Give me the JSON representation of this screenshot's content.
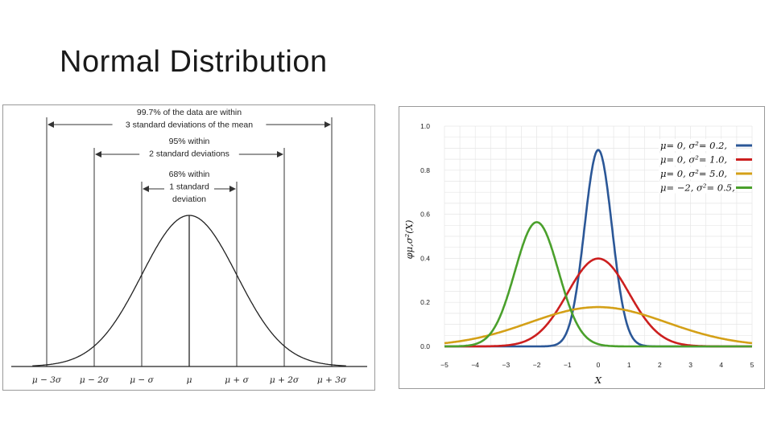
{
  "slide": {
    "title": "Normal Distribution"
  },
  "chart_data": [
    {
      "type": "line",
      "series": [
        {
          "mean": 0,
          "sd": 1
        }
      ],
      "xlim": [
        -3.3,
        3.3
      ],
      "x_tick_labels": [
        "μ − 3σ",
        "μ − 2σ",
        "μ − σ",
        "μ",
        "μ + σ",
        "μ + 2σ",
        "μ + 3σ"
      ],
      "annotations": [
        {
          "lines": [
            "99.7% of the data are within",
            "3 standard deviations of the mean"
          ],
          "span_sd": 3
        },
        {
          "lines": [
            "95% within",
            "2 standard deviations"
          ],
          "span_sd": 2
        },
        {
          "lines": [
            "68% within",
            "1 standard",
            "deviation"
          ],
          "span_sd": 1
        }
      ]
    },
    {
      "type": "line",
      "xlim": [
        -5,
        5
      ],
      "ylim": [
        0,
        1.0
      ],
      "x_ticks": [
        "−5",
        "−4",
        "−3",
        "−2",
        "−1",
        "0",
        "1",
        "2",
        "3",
        "4",
        "5"
      ],
      "y_ticks": [
        "0.0",
        "0.2",
        "0.4",
        "0.6",
        "0.8",
        "1.0"
      ],
      "xlabel": "X",
      "ylabel": "φμ,σ²(X)",
      "grid": true,
      "legend_position": "top-right",
      "series": [
        {
          "mu": 0,
          "var": 0.2,
          "name": "μ= 0,   σ²= 0.2,",
          "color": "#2b5797"
        },
        {
          "mu": 0,
          "var": 1.0,
          "name": "μ= 0,   σ²= 1.0,",
          "color": "#cc1f1f"
        },
        {
          "mu": 0,
          "var": 5.0,
          "name": "μ= 0,   σ²= 5.0,",
          "color": "#d4a017"
        },
        {
          "mu": -2,
          "var": 0.5,
          "name": "μ= −2,  σ²= 0.5,",
          "color": "#4aa02c"
        }
      ]
    }
  ]
}
